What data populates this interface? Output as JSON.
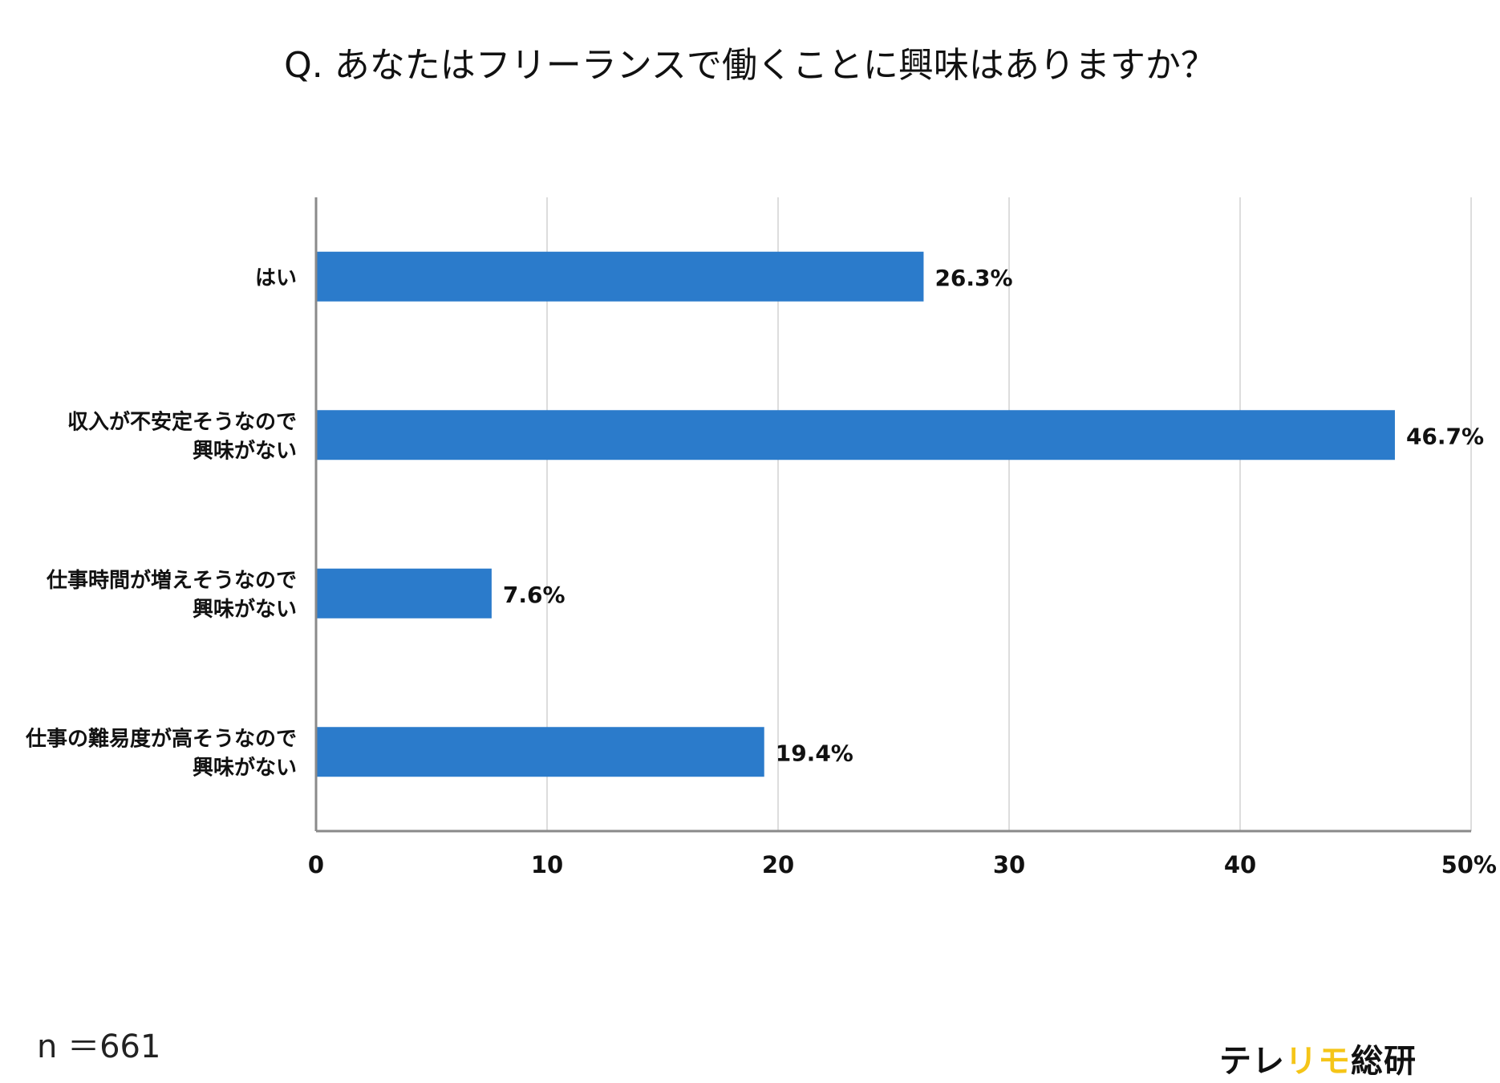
{
  "title": "Q. あなたはフリーランスで働くことに興味はありますか？",
  "sample_size": "n ＝661",
  "brand": {
    "part1": "テレ",
    "part2": "リモ",
    "part3": "総研",
    "accent_color": "#f5c518"
  },
  "chart_data": {
    "type": "bar",
    "orientation": "horizontal",
    "categories": [
      [
        "はい"
      ],
      [
        "収入が不安定そうなので",
        "興味がない"
      ],
      [
        "仕事時間が増えそうなので",
        "興味がない"
      ],
      [
        "仕事の難易度が高そうなので",
        "興味がない"
      ]
    ],
    "values": [
      26.3,
      46.7,
      7.6,
      19.4
    ],
    "value_labels": [
      "26.3%",
      "46.7%",
      "7.6%",
      "19.4%"
    ],
    "xlim": [
      0,
      50
    ],
    "x_ticks": [
      0,
      10,
      20,
      30,
      40,
      50
    ],
    "x_tick_labels": [
      "0",
      "10",
      "20",
      "30",
      "40",
      "50%"
    ],
    "grid": true,
    "bar_color": "#2b7bcb"
  }
}
